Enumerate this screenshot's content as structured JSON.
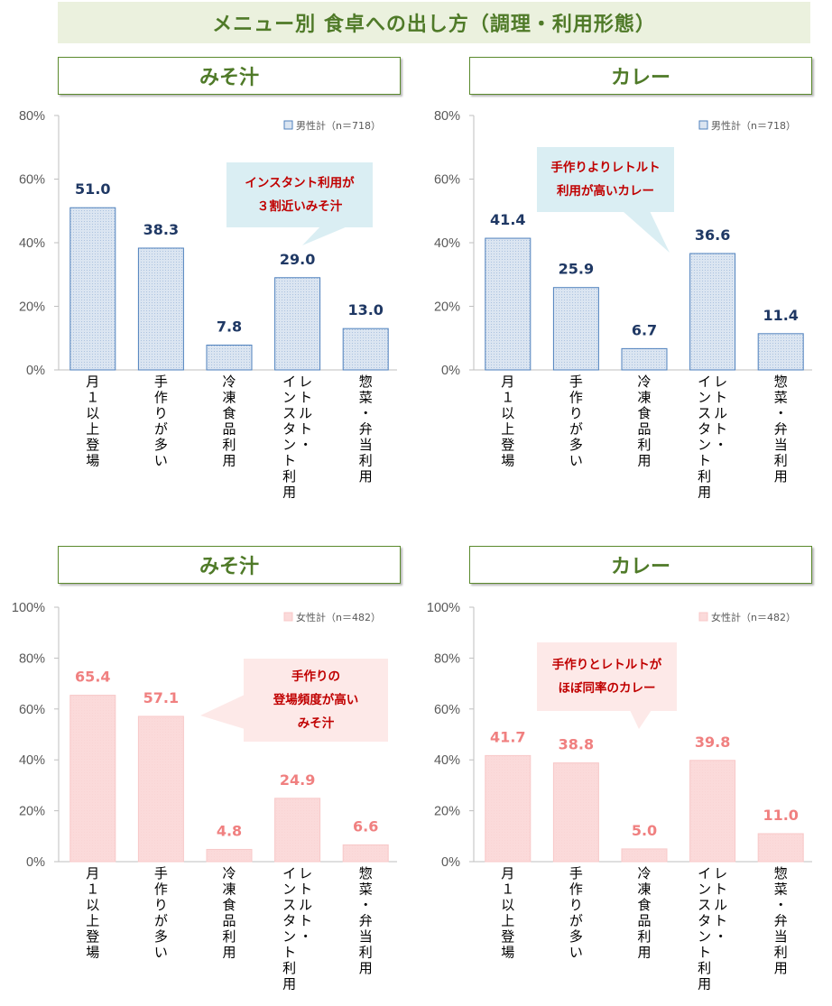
{
  "header": {
    "title": "メニュー別 食卓への出し方（調理・利用形態）"
  },
  "panels": {
    "tl": {
      "title": "みそ汁",
      "callout": "インスタント利用が\n３割近いみそ汁"
    },
    "tr": {
      "title": "カレー",
      "callout": "手作りよりレトルト\n利用が高いカレー"
    },
    "bl": {
      "title": "みそ汁",
      "callout": "手作りの\n登場頻度が高い\nみそ汁"
    },
    "br": {
      "title": "カレー",
      "callout": "手作りとレトルトが\nほぼ同率のカレー"
    }
  },
  "chart_data": [
    {
      "id": "tl",
      "type": "bar",
      "title": "みそ汁",
      "categories": [
        "月１以上登場",
        "手作りが多い",
        "冷凍食品利用",
        "レトルト・\nインスタント利用",
        "惣菜・弁当利用"
      ],
      "series": [
        {
          "name": "男性計（n＝718）",
          "values": [
            51.0,
            38.3,
            7.8,
            29.0,
            13.0
          ]
        }
      ],
      "ylim": [
        0,
        80
      ],
      "yticks": [
        0,
        20,
        40,
        60,
        80
      ],
      "ytick_labels": [
        "0%",
        "20%",
        "40%",
        "60%",
        "80%"
      ],
      "legend": "top-right",
      "colors": {
        "fill": "#dbe5f1",
        "stroke": "#4f81bd",
        "label": "#1f3864"
      }
    },
    {
      "id": "tr",
      "type": "bar",
      "title": "カレー",
      "categories": [
        "月１以上登場",
        "手作りが多い",
        "冷凍食品利用",
        "レトルト・\nインスタント利用",
        "惣菜・弁当利用"
      ],
      "series": [
        {
          "name": "男性計（n＝718）",
          "values": [
            41.4,
            25.9,
            6.7,
            36.6,
            11.4
          ]
        }
      ],
      "ylim": [
        0,
        80
      ],
      "yticks": [
        0,
        20,
        40,
        60,
        80
      ],
      "ytick_labels": [
        "0%",
        "20%",
        "40%",
        "60%",
        "80%"
      ],
      "legend": "top-right",
      "colors": {
        "fill": "#dbe5f1",
        "stroke": "#4f81bd",
        "label": "#1f3864"
      }
    },
    {
      "id": "bl",
      "type": "bar",
      "title": "みそ汁",
      "categories": [
        "月１以上登場",
        "手作りが多い",
        "冷凍食品利用",
        "レトルト・\nインスタント利用",
        "惣菜・弁当利用"
      ],
      "series": [
        {
          "name": "女性計（n＝482）",
          "values": [
            65.4,
            57.1,
            4.8,
            24.9,
            6.6
          ]
        }
      ],
      "ylim": [
        0,
        100
      ],
      "yticks": [
        0,
        20,
        40,
        60,
        80,
        100
      ],
      "ytick_labels": [
        "0%",
        "20%",
        "40%",
        "60%",
        "80%",
        "100%"
      ],
      "legend": "top-right",
      "colors": {
        "fill": "#fbdada",
        "stroke": "#f8c8c8",
        "label": "#f08080"
      }
    },
    {
      "id": "br",
      "type": "bar",
      "title": "カレー",
      "categories": [
        "月１以上登場",
        "手作りが多い",
        "冷凍食品利用",
        "レトルト・\nインスタント利用",
        "惣菜・弁当利用"
      ],
      "series": [
        {
          "name": "女性計（n＝482）",
          "values": [
            41.7,
            38.8,
            5.0,
            39.8,
            11.0
          ]
        }
      ],
      "ylim": [
        0,
        100
      ],
      "yticks": [
        0,
        20,
        40,
        60,
        80,
        100
      ],
      "ytick_labels": [
        "0%",
        "20%",
        "40%",
        "60%",
        "80%",
        "100%"
      ],
      "legend": "top-right",
      "colors": {
        "fill": "#fbdada",
        "stroke": "#f8c8c8",
        "label": "#f08080"
      }
    }
  ]
}
